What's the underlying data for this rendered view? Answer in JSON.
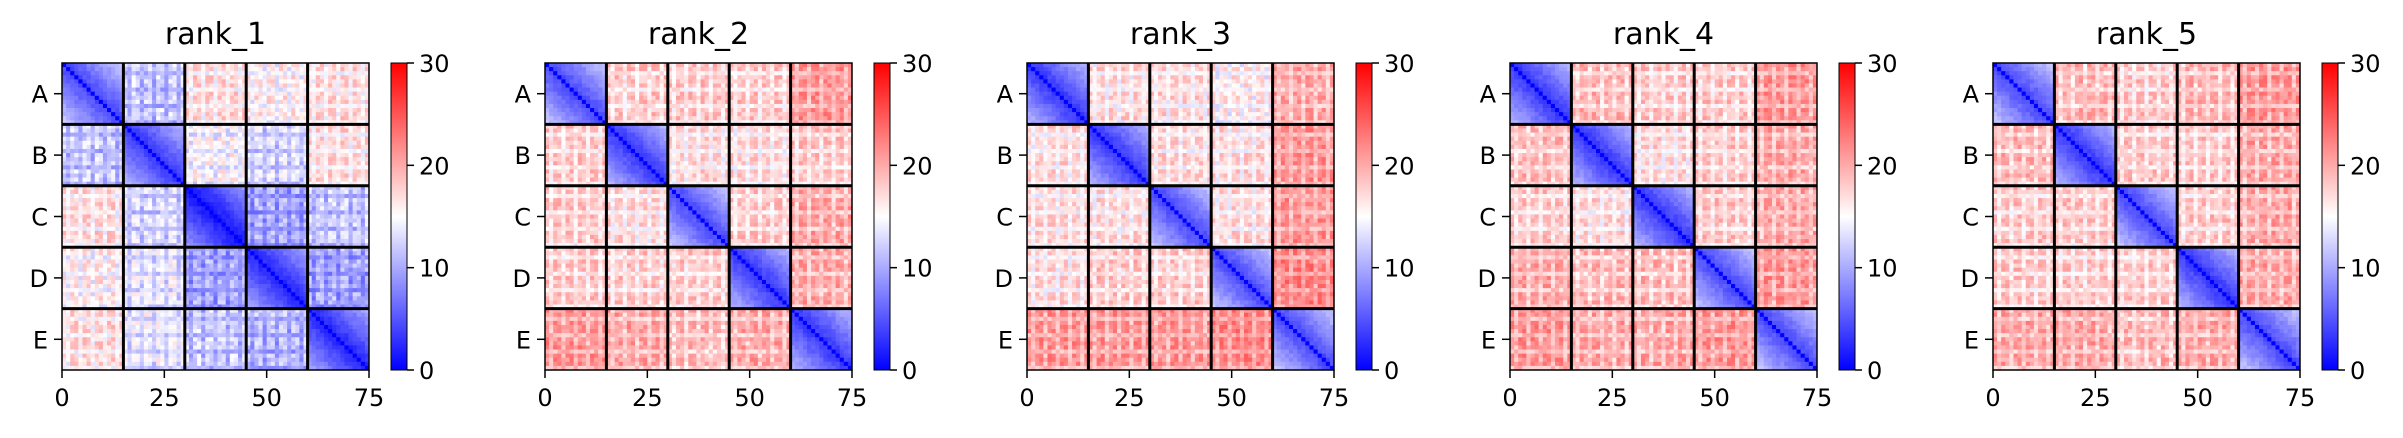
{
  "chart_data": {
    "type": "heatmap",
    "colormap": {
      "name": "bwr",
      "stops": [
        "#0000ff",
        "#ffffff",
        "#ff0000"
      ],
      "vmin": 0,
      "vmax": 30,
      "ticks": [
        "0",
        "10",
        "20",
        "30"
      ]
    },
    "block_labels": [
      "A",
      "B",
      "C",
      "D",
      "E"
    ],
    "block_size": 15,
    "matrix_size": 75,
    "xlim": [
      0,
      75
    ],
    "x_ticks": [
      "0",
      "25",
      "50",
      "75"
    ],
    "block_boundaries": [
      15,
      30,
      45,
      60
    ],
    "panels": [
      {
        "title": "rank_1",
        "block_means": [
          [
            7,
            13,
            18,
            17,
            18
          ],
          [
            13,
            6,
            16,
            14,
            18
          ],
          [
            18,
            14,
            4,
            11,
            13
          ],
          [
            17,
            15,
            11,
            5,
            11
          ],
          [
            18,
            15,
            13,
            12,
            5
          ]
        ]
      },
      {
        "title": "rank_2",
        "block_means": [
          [
            7,
            19,
            19,
            19,
            22
          ],
          [
            19,
            6,
            18,
            18,
            19
          ],
          [
            19,
            18,
            7,
            19,
            21
          ],
          [
            19,
            19,
            19,
            6,
            21
          ],
          [
            22,
            21,
            20,
            21,
            6
          ]
        ]
      },
      {
        "title": "rank_3",
        "block_means": [
          [
            6,
            18,
            18,
            17,
            21
          ],
          [
            18,
            6,
            18,
            18,
            22
          ],
          [
            18,
            18,
            7,
            18,
            22
          ],
          [
            18,
            19,
            19,
            7,
            23
          ],
          [
            22,
            22,
            22,
            23,
            7
          ]
        ]
      },
      {
        "title": "rank_4",
        "block_means": [
          [
            6,
            20,
            19,
            19,
            22
          ],
          [
            20,
            6,
            18,
            19,
            21
          ],
          [
            19,
            18,
            6,
            19,
            21
          ],
          [
            21,
            20,
            20,
            7,
            22
          ],
          [
            22,
            21,
            21,
            22,
            7
          ]
        ]
      },
      {
        "title": "rank_5",
        "block_means": [
          [
            7,
            20,
            19,
            20,
            22
          ],
          [
            20,
            6,
            19,
            19,
            21
          ],
          [
            19,
            19,
            7,
            19,
            21
          ],
          [
            19,
            19,
            19,
            6,
            21
          ],
          [
            21,
            21,
            20,
            21,
            7
          ]
        ]
      }
    ]
  }
}
